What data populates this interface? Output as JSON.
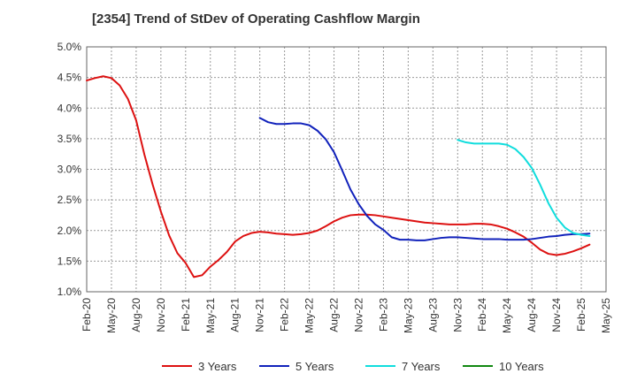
{
  "chart_data": {
    "type": "line",
    "title": "[2354]  Trend of StDev of Operating Cashflow Margin",
    "xlabel": "",
    "ylabel": "",
    "x_ticks": [
      "Feb-20",
      "May-20",
      "Aug-20",
      "Nov-20",
      "Feb-21",
      "May-21",
      "Aug-21",
      "Nov-21",
      "Feb-22",
      "May-22",
      "Aug-22",
      "Nov-22",
      "Feb-23",
      "May-23",
      "Aug-23",
      "Nov-23",
      "Feb-24",
      "May-24",
      "Aug-24",
      "Nov-24",
      "Feb-25",
      "May-25"
    ],
    "y_ticks": [
      "1.0%",
      "1.5%",
      "2.0%",
      "2.5%",
      "3.0%",
      "3.5%",
      "4.0%",
      "4.5%",
      "5.0%"
    ],
    "ylim": [
      1.0,
      5.0
    ],
    "xlim": [
      "Feb-20",
      "May-25"
    ],
    "grid": true,
    "legend_position": "bottom",
    "series": [
      {
        "name": "3 Years",
        "color": "#dd1111",
        "points": [
          [
            "Feb-20",
            4.45
          ],
          [
            "Mar-20",
            4.49
          ],
          [
            "Apr-20",
            4.52
          ],
          [
            "May-20",
            4.49
          ],
          [
            "Jun-20",
            4.37
          ],
          [
            "Jul-20",
            4.15
          ],
          [
            "Aug-20",
            3.8
          ],
          [
            "Sep-20",
            3.24
          ],
          [
            "Oct-20",
            2.75
          ],
          [
            "Nov-20",
            2.31
          ],
          [
            "Dec-20",
            1.92
          ],
          [
            "Jan-21",
            1.63
          ],
          [
            "Feb-21",
            1.47
          ],
          [
            "Mar-21",
            1.24
          ],
          [
            "Apr-21",
            1.27
          ],
          [
            "May-21",
            1.41
          ],
          [
            "Jun-21",
            1.52
          ],
          [
            "Jul-21",
            1.65
          ],
          [
            "Aug-21",
            1.82
          ],
          [
            "Sep-21",
            1.91
          ],
          [
            "Oct-21",
            1.96
          ],
          [
            "Nov-21",
            1.98
          ],
          [
            "Dec-21",
            1.97
          ],
          [
            "Jan-22",
            1.95
          ],
          [
            "Feb-22",
            1.94
          ],
          [
            "Mar-22",
            1.93
          ],
          [
            "Apr-22",
            1.94
          ],
          [
            "May-22",
            1.96
          ],
          [
            "Jun-22",
            2.0
          ],
          [
            "Jul-22",
            2.07
          ],
          [
            "Aug-22",
            2.15
          ],
          [
            "Sep-22",
            2.21
          ],
          [
            "Oct-22",
            2.25
          ],
          [
            "Nov-22",
            2.26
          ],
          [
            "Dec-22",
            2.26
          ],
          [
            "Jan-23",
            2.25
          ],
          [
            "Feb-23",
            2.23
          ],
          [
            "Mar-23",
            2.21
          ],
          [
            "Apr-23",
            2.19
          ],
          [
            "May-23",
            2.17
          ],
          [
            "Jun-23",
            2.15
          ],
          [
            "Jul-23",
            2.13
          ],
          [
            "Aug-23",
            2.12
          ],
          [
            "Sep-23",
            2.11
          ],
          [
            "Oct-23",
            2.1
          ],
          [
            "Nov-23",
            2.1
          ],
          [
            "Dec-23",
            2.1
          ],
          [
            "Jan-24",
            2.11
          ],
          [
            "Feb-24",
            2.11
          ],
          [
            "Mar-24",
            2.1
          ],
          [
            "Apr-24",
            2.07
          ],
          [
            "May-24",
            2.03
          ],
          [
            "Jun-24",
            1.97
          ],
          [
            "Jul-24",
            1.9
          ],
          [
            "Aug-24",
            1.8
          ],
          [
            "Sep-24",
            1.69
          ],
          [
            "Oct-24",
            1.62
          ],
          [
            "Nov-24",
            1.6
          ],
          [
            "Dec-24",
            1.62
          ],
          [
            "Jan-25",
            1.66
          ],
          [
            "Feb-25",
            1.71
          ],
          [
            "Mar-25",
            1.77
          ]
        ]
      },
      {
        "name": "5 Years",
        "color": "#1122bb",
        "points": [
          [
            "Nov-21",
            3.84
          ],
          [
            "Dec-21",
            3.77
          ],
          [
            "Jan-22",
            3.74
          ],
          [
            "Feb-22",
            3.74
          ],
          [
            "Mar-22",
            3.75
          ],
          [
            "Apr-22",
            3.75
          ],
          [
            "May-22",
            3.72
          ],
          [
            "Jun-22",
            3.63
          ],
          [
            "Jul-22",
            3.49
          ],
          [
            "Aug-22",
            3.28
          ],
          [
            "Sep-22",
            2.98
          ],
          [
            "Oct-22",
            2.67
          ],
          [
            "Nov-22",
            2.43
          ],
          [
            "Dec-22",
            2.24
          ],
          [
            "Jan-23",
            2.1
          ],
          [
            "Feb-23",
            2.01
          ],
          [
            "Mar-23",
            1.89
          ],
          [
            "Apr-23",
            1.85
          ],
          [
            "May-23",
            1.85
          ],
          [
            "Jun-23",
            1.84
          ],
          [
            "Jul-23",
            1.84
          ],
          [
            "Aug-23",
            1.86
          ],
          [
            "Sep-23",
            1.88
          ],
          [
            "Oct-23",
            1.89
          ],
          [
            "Nov-23",
            1.89
          ],
          [
            "Dec-23",
            1.88
          ],
          [
            "Jan-24",
            1.87
          ],
          [
            "Feb-24",
            1.86
          ],
          [
            "Mar-24",
            1.86
          ],
          [
            "Apr-24",
            1.86
          ],
          [
            "May-24",
            1.85
          ],
          [
            "Jun-24",
            1.85
          ],
          [
            "Jul-24",
            1.85
          ],
          [
            "Aug-24",
            1.86
          ],
          [
            "Sep-24",
            1.88
          ],
          [
            "Oct-24",
            1.9
          ],
          [
            "Nov-24",
            1.91
          ],
          [
            "Dec-24",
            1.93
          ],
          [
            "Jan-25",
            1.94
          ],
          [
            "Feb-25",
            1.94
          ],
          [
            "Mar-25",
            1.95
          ]
        ]
      },
      {
        "name": "7 Years",
        "color": "#11dddd",
        "points": [
          [
            "Nov-23",
            3.48
          ],
          [
            "Dec-23",
            3.44
          ],
          [
            "Jan-24",
            3.42
          ],
          [
            "Feb-24",
            3.42
          ],
          [
            "Mar-24",
            3.42
          ],
          [
            "Apr-24",
            3.42
          ],
          [
            "May-24",
            3.4
          ],
          [
            "Jun-24",
            3.33
          ],
          [
            "Jul-24",
            3.2
          ],
          [
            "Aug-24",
            3.02
          ],
          [
            "Sep-24",
            2.75
          ],
          [
            "Oct-24",
            2.45
          ],
          [
            "Nov-24",
            2.21
          ],
          [
            "Dec-24",
            2.05
          ],
          [
            "Jan-25",
            1.96
          ],
          [
            "Feb-25",
            1.93
          ],
          [
            "Mar-25",
            1.91
          ]
        ]
      },
      {
        "name": "10 Years",
        "color": "#118811",
        "points": []
      }
    ]
  }
}
